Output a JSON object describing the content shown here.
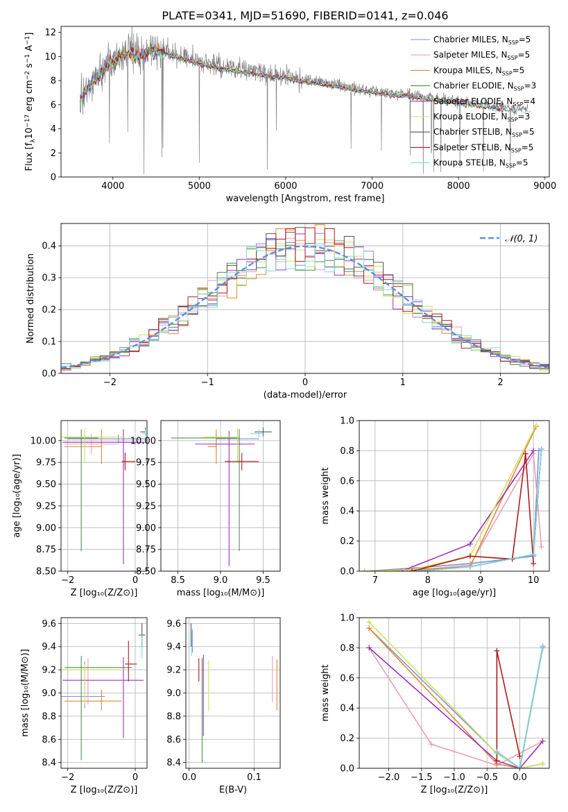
{
  "title": "PLATE=0341, MJD=51690, FIBERID=0141, z=0.046",
  "colors": [
    "#7f8fd4",
    "#ee9fb7",
    "#e08a2f",
    "#4f8f4f",
    "#9b2fc0",
    "#cfe05a",
    "#555555",
    "#b01818",
    "#7fd8dc"
  ],
  "chart_data": [
    {
      "id": "spectrum",
      "type": "line",
      "xlabel": "wavelength [Angstrom, rest frame]",
      "ylabel": "Flux [f_λ 10^-17 erg cm^-2 s^-1 A^-1]",
      "xlim": [
        3400,
        9050
      ],
      "ylim": [
        0,
        12.5
      ],
      "xticks": [
        4000,
        5000,
        6000,
        7000,
        8000,
        9000
      ],
      "yticks": [
        0,
        2,
        4,
        6,
        8,
        10,
        12
      ],
      "grid": false,
      "legend_position": "top-right",
      "legend": [
        {
          "label": "Chabrier MILES, N",
          "sub": "SSP",
          "tail": "=5"
        },
        {
          "label": "Salpeter MILES, N",
          "sub": "SSP",
          "tail": "=5"
        },
        {
          "label": "Kroupa MILES, N",
          "sub": "SSP",
          "tail": "=5"
        },
        {
          "label": "Chabrier ELODIE, N",
          "sub": "SSP",
          "tail": "=3"
        },
        {
          "label": "Salpeter ELODIE, N",
          "sub": "SSP",
          "tail": "=4"
        },
        {
          "label": "Kroupa ELODIE, N",
          "sub": "SSP",
          "tail": "=3"
        },
        {
          "label": "Chabrier STELIB, N",
          "sub": "SSP",
          "tail": "=5"
        },
        {
          "label": "Salpeter STELIB, N",
          "sub": "SSP",
          "tail": "=5"
        },
        {
          "label": "Kroupa STELIB, N",
          "sub": "SSP",
          "tail": "=5"
        }
      ],
      "data_envelope": {
        "x": [
          3620,
          3700,
          3800,
          3900,
          4000,
          4100,
          4200,
          4300,
          4400,
          4500,
          4700,
          4900,
          5000,
          5200,
          5400,
          5600,
          5800,
          6000,
          6200,
          6400,
          6600,
          6800,
          7000,
          7200,
          7400,
          7600,
          7800,
          8000,
          8200,
          8400,
          8600,
          8800
        ],
        "y": [
          6.5,
          7.5,
          8.3,
          9.2,
          9.8,
          10.2,
          10.5,
          10.0,
          10.6,
          10.6,
          10.2,
          9.8,
          9.6,
          9.2,
          9.0,
          8.8,
          8.6,
          8.4,
          8.1,
          7.9,
          7.7,
          7.4,
          7.2,
          7.0,
          6.9,
          6.7,
          6.5,
          6.3,
          6.1,
          5.9,
          5.7,
          5.6
        ]
      }
    },
    {
      "id": "residuals",
      "type": "line",
      "xlabel": "(data-model)/error",
      "ylabel": "Normed distribution",
      "xlim": [
        -2.5,
        2.5
      ],
      "ylim": [
        0,
        0.47
      ],
      "xticks": [
        -2,
        -1,
        0,
        1,
        2
      ],
      "yticks": [
        0.0,
        0.1,
        0.2,
        0.3,
        0.4
      ],
      "grid": true,
      "legend_position": "top-right",
      "legend": [
        "𝒩(0, 1)"
      ],
      "gaussian": {
        "mean": 0,
        "sigma": 1
      }
    },
    {
      "id": "age_vs_Z",
      "type": "scatter",
      "xlabel": "Z [log₁₀(Z/Z⊙)]",
      "ylabel": "age [log₁₀(age/yr)]",
      "xlim": [
        -2.2,
        0.35
      ],
      "ylim": [
        8.5,
        10.23
      ],
      "xticks": [
        -2,
        0
      ],
      "yticks": [
        8.5,
        8.75,
        9.0,
        9.25,
        9.5,
        9.75,
        10.0
      ],
      "grid": true,
      "points": [
        {
          "c": 0,
          "x": -0.5,
          "y": 10.02,
          "xerr": [
            1.5,
            0.8
          ],
          "yerr": [
            0.05,
            0.05
          ]
        },
        {
          "c": 1,
          "x": -1.3,
          "y": 9.96,
          "xerr": [
            0.8,
            0.8
          ],
          "yerr": [
            0.12,
            0.12
          ]
        },
        {
          "c": 2,
          "x": -1.0,
          "y": 9.93,
          "xerr": [
            1.1,
            0.0
          ],
          "yerr": [
            0.2,
            0.2
          ]
        },
        {
          "c": 3,
          "x": -1.6,
          "y": 10.03,
          "xerr": [
            0.5,
            0.5
          ],
          "yerr": [
            1.3,
            0.1
          ]
        },
        {
          "c": 4,
          "x": -0.35,
          "y": 9.98,
          "xerr": [
            1.8,
            0.65
          ],
          "yerr": [
            1.4,
            0.15
          ]
        },
        {
          "c": 5,
          "x": -1.5,
          "y": 10.04,
          "xerr": [
            0.7,
            1.2
          ],
          "yerr": [
            0.3,
            0.1
          ]
        },
        {
          "c": 6,
          "x": 0.3,
          "y": 10.1,
          "xerr": [
            0.15,
            0.0
          ],
          "yerr": [
            0.05,
            0.05
          ]
        },
        {
          "c": 7,
          "x": -0.3,
          "y": 9.76,
          "xerr": [
            0.1,
            0.3
          ],
          "yerr": [
            0.1,
            0.1
          ]
        },
        {
          "c": 8,
          "x": 0.3,
          "y": 10.08,
          "xerr": [
            0.1,
            0.0
          ],
          "yerr": [
            0.05,
            0.05
          ]
        }
      ]
    },
    {
      "id": "age_vs_mass",
      "type": "scatter",
      "xlabel": "mass [log₁₀(M/M⊙)]",
      "ylabel": "",
      "xlim": [
        8.3,
        9.7
      ],
      "ylim": [
        8.5,
        10.23
      ],
      "xticks": [
        8.5,
        9.0,
        9.5
      ],
      "yticks": [
        8.5,
        8.75,
        9.0,
        9.25,
        9.5,
        9.75,
        10.0
      ],
      "grid": true,
      "points": [
        {
          "c": 0,
          "x": 9.2,
          "y": 10.02,
          "xerr": [
            0.25,
            0.25
          ],
          "yerr": [
            0.05,
            0.05
          ]
        },
        {
          "c": 1,
          "x": 8.95,
          "y": 9.96,
          "xerr": [
            0.1,
            0.3
          ],
          "yerr": [
            0.12,
            0.12
          ]
        },
        {
          "c": 2,
          "x": 8.95,
          "y": 9.93,
          "xerr": [
            0.1,
            0.0
          ],
          "yerr": [
            0.2,
            0.2
          ]
        },
        {
          "c": 3,
          "x": 9.22,
          "y": 10.03,
          "xerr": [
            0.8,
            0.0
          ],
          "yerr": [
            1.3,
            0.1
          ]
        },
        {
          "c": 4,
          "x": 9.1,
          "y": 9.96,
          "xerr": [
            0.4,
            0.3
          ],
          "yerr": [
            1.4,
            0.15
          ]
        },
        {
          "c": 5,
          "x": 9.2,
          "y": 10.04,
          "xerr": [
            0.4,
            0.0
          ],
          "yerr": [
            0.3,
            0.1
          ]
        },
        {
          "c": 6,
          "x": 9.5,
          "y": 10.1,
          "xerr": [
            0.1,
            0.1
          ],
          "yerr": [
            0.05,
            0.05
          ]
        },
        {
          "c": 7,
          "x": 9.25,
          "y": 9.76,
          "xerr": [
            0.2,
            0.2
          ],
          "yerr": [
            0.1,
            0.1
          ]
        },
        {
          "c": 8,
          "x": 9.45,
          "y": 10.08,
          "xerr": [
            0.1,
            0.05
          ],
          "yerr": [
            0.05,
            0.05
          ]
        }
      ]
    },
    {
      "id": "massweight_vs_age",
      "type": "line",
      "xlabel": "age [log₁₀(age/yr)]",
      "ylabel": "mass weight",
      "xlim": [
        6.7,
        10.3
      ],
      "ylim": [
        0,
        1.0
      ],
      "xticks": [
        7,
        8,
        9,
        10
      ],
      "yticks": [
        0.0,
        0.2,
        0.4,
        0.6,
        0.8,
        1.0
      ],
      "grid": true,
      "series": [
        {
          "c": 0,
          "x": [
            6.8,
            7.7,
            8.8,
            10.0,
            10.1
          ],
          "y": [
            0.0,
            0.02,
            0.05,
            0.1,
            0.8
          ]
        },
        {
          "c": 1,
          "x": [
            7.6,
            8.8,
            10.0,
            10.15
          ],
          "y": [
            0.0,
            0.04,
            0.78,
            0.16
          ]
        },
        {
          "c": 2,
          "x": [
            6.8,
            7.7,
            8.8,
            10.05
          ],
          "y": [
            0.0,
            0.01,
            0.03,
            0.96
          ]
        },
        {
          "c": 3,
          "x": [
            7.8,
            8.8,
            10.0,
            10.15
          ],
          "y": [
            0.0,
            0.03,
            0.11,
            0.81
          ]
        },
        {
          "c": 4,
          "x": [
            7.5,
            8.8,
            10.0
          ],
          "y": [
            0.0,
            0.18,
            0.8
          ]
        },
        {
          "c": 5,
          "x": [
            6.8,
            7.7,
            8.8,
            10.05
          ],
          "y": [
            0.0,
            0.01,
            0.1,
            0.97
          ]
        },
        {
          "c": 6,
          "x": [
            7.8,
            8.8,
            10.0,
            10.15
          ],
          "y": [
            0.0,
            0.03,
            0.11,
            0.81
          ]
        },
        {
          "c": 7,
          "x": [
            7.7,
            8.8,
            9.6,
            9.85,
            10.0
          ],
          "y": [
            0.0,
            0.1,
            0.08,
            0.78,
            0.05
          ]
        },
        {
          "c": 8,
          "x": [
            7.8,
            8.8,
            10.0,
            10.15
          ],
          "y": [
            0.0,
            0.03,
            0.11,
            0.81
          ]
        }
      ]
    },
    {
      "id": "mass_vs_Z",
      "type": "scatter",
      "xlabel": "Z [log₁₀(Z/Z⊙)]",
      "ylabel": "mass [log₁₀(M/M⊙)]",
      "xlim": [
        -2.2,
        0.35
      ],
      "ylim": [
        8.35,
        9.65
      ],
      "xticks": [
        -2,
        0
      ],
      "yticks": [
        8.4,
        8.6,
        8.8,
        9.0,
        9.2,
        9.4,
        9.6
      ],
      "grid": true,
      "points": [
        {
          "c": 0,
          "x": -1.5,
          "y": 8.97,
          "xerr": [
            0.7,
            0.6
          ],
          "yerr": [
            0.1,
            0.3
          ]
        },
        {
          "c": 1,
          "x": -1.4,
          "y": 9.2,
          "xerr": [
            0.8,
            0.8
          ],
          "yerr": [
            0.3,
            0.1
          ]
        },
        {
          "c": 2,
          "x": -1.0,
          "y": 8.93,
          "xerr": [
            1.1,
            0.6
          ],
          "yerr": [
            0.08,
            0.1
          ]
        },
        {
          "c": 3,
          "x": -1.6,
          "y": 9.22,
          "xerr": [
            0.5,
            1.5
          ],
          "yerr": [
            0.8,
            0.1
          ]
        },
        {
          "c": 4,
          "x": -0.35,
          "y": 9.11,
          "xerr": [
            1.8,
            0.6
          ],
          "yerr": [
            0.5,
            0.2
          ]
        },
        {
          "c": 5,
          "x": -1.5,
          "y": 9.2,
          "xerr": [
            0.7,
            1.2
          ],
          "yerr": [
            0.3,
            0.05
          ]
        },
        {
          "c": 6,
          "x": 0.2,
          "y": 9.5,
          "xerr": [
            0.1,
            0.1
          ],
          "yerr": [
            0.1,
            0.1
          ]
        },
        {
          "c": 7,
          "x": -0.2,
          "y": 9.25,
          "xerr": [
            0.1,
            0.25
          ],
          "yerr": [
            0.15,
            0.2
          ]
        },
        {
          "c": 8,
          "x": 0.2,
          "y": 9.4,
          "xerr": [
            0.1,
            0.05
          ],
          "yerr": [
            0.1,
            0.1
          ]
        }
      ]
    },
    {
      "id": "mass_vs_ebv",
      "type": "scatter",
      "xlabel": "E(B-V)",
      "ylabel": "",
      "xlim": [
        -0.005,
        0.14
      ],
      "ylim": [
        8.35,
        9.65
      ],
      "xticks": [
        0.0,
        0.1
      ],
      "yticks": [
        8.4,
        8.6,
        8.8,
        9.0,
        9.2,
        9.4,
        9.6
      ],
      "grid": true,
      "points": [
        {
          "c": 0,
          "x": 0.005,
          "y": 9.45,
          "yerr": [
            0.1,
            0.1
          ]
        },
        {
          "c": 1,
          "x": 0.128,
          "y": 9.12,
          "yerr": [
            0.2,
            0.2
          ]
        },
        {
          "c": 2,
          "x": 0.135,
          "y": 9.07,
          "yerr": [
            0.22,
            0.22
          ]
        },
        {
          "c": 3,
          "x": 0.02,
          "y": 8.85,
          "yerr": [
            0.45,
            0.45
          ]
        },
        {
          "c": 4,
          "x": 0.022,
          "y": 8.98,
          "yerr": [
            0.35,
            0.35
          ]
        },
        {
          "c": 5,
          "x": 0.03,
          "y": 9.06,
          "yerr": [
            0.22,
            0.22
          ]
        },
        {
          "c": 6,
          "x": 0.003,
          "y": 9.5,
          "yerr": [
            0.1,
            0.1
          ]
        },
        {
          "c": 7,
          "x": 0.015,
          "y": 9.2,
          "yerr": [
            0.1,
            0.1
          ]
        },
        {
          "c": 8,
          "x": 0.004,
          "y": 9.42,
          "yerr": [
            0.1,
            0.1
          ]
        }
      ]
    },
    {
      "id": "massweight_vs_Z",
      "type": "line",
      "xlabel": "Z [log₁₀(Z/Z⊙)]",
      "ylabel": "mass weight",
      "xlim": [
        -2.45,
        0.45
      ],
      "ylim": [
        0,
        1.0
      ],
      "xticks": [
        -2.0,
        -1.5,
        -1.0,
        -0.5,
        0.0
      ],
      "yticks": [
        0.0,
        0.2,
        0.4,
        0.6,
        0.8,
        1.0
      ],
      "grid": true,
      "series": [
        {
          "c": 0,
          "x": [
            -2.3,
            -0.35,
            0.0,
            0.35
          ],
          "y": [
            0.93,
            0.1,
            0.0,
            0.8
          ]
        },
        {
          "c": 1,
          "x": [
            -2.3,
            -1.35,
            -0.35,
            0.35
          ],
          "y": [
            0.8,
            0.16,
            0.02,
            0.18
          ]
        },
        {
          "c": 2,
          "x": [
            -2.3,
            -0.35,
            0.0,
            0.35
          ],
          "y": [
            0.93,
            0.03,
            0.0,
            0.03
          ]
        },
        {
          "c": 3,
          "x": [
            -0.35,
            0.0,
            0.35
          ],
          "y": [
            0.11,
            0.0,
            0.81
          ]
        },
        {
          "c": 4,
          "x": [
            -2.3,
            -0.35,
            0.0,
            0.35
          ],
          "y": [
            0.8,
            0.05,
            0.0,
            0.18
          ]
        },
        {
          "c": 5,
          "x": [
            -2.3,
            -0.35,
            0.0,
            0.35
          ],
          "y": [
            0.97,
            0.1,
            0.0,
            0.03
          ]
        },
        {
          "c": 6,
          "x": [
            -0.35,
            0.0,
            0.35
          ],
          "y": [
            0.11,
            0.0,
            0.81
          ]
        },
        {
          "c": 7,
          "x": [
            -0.35,
            -0.35,
            0.0
          ],
          "y": [
            0.05,
            0.78,
            0.08
          ]
        },
        {
          "c": 8,
          "x": [
            -0.35,
            0.0,
            0.35
          ],
          "y": [
            0.11,
            0.0,
            0.81
          ]
        }
      ]
    }
  ]
}
